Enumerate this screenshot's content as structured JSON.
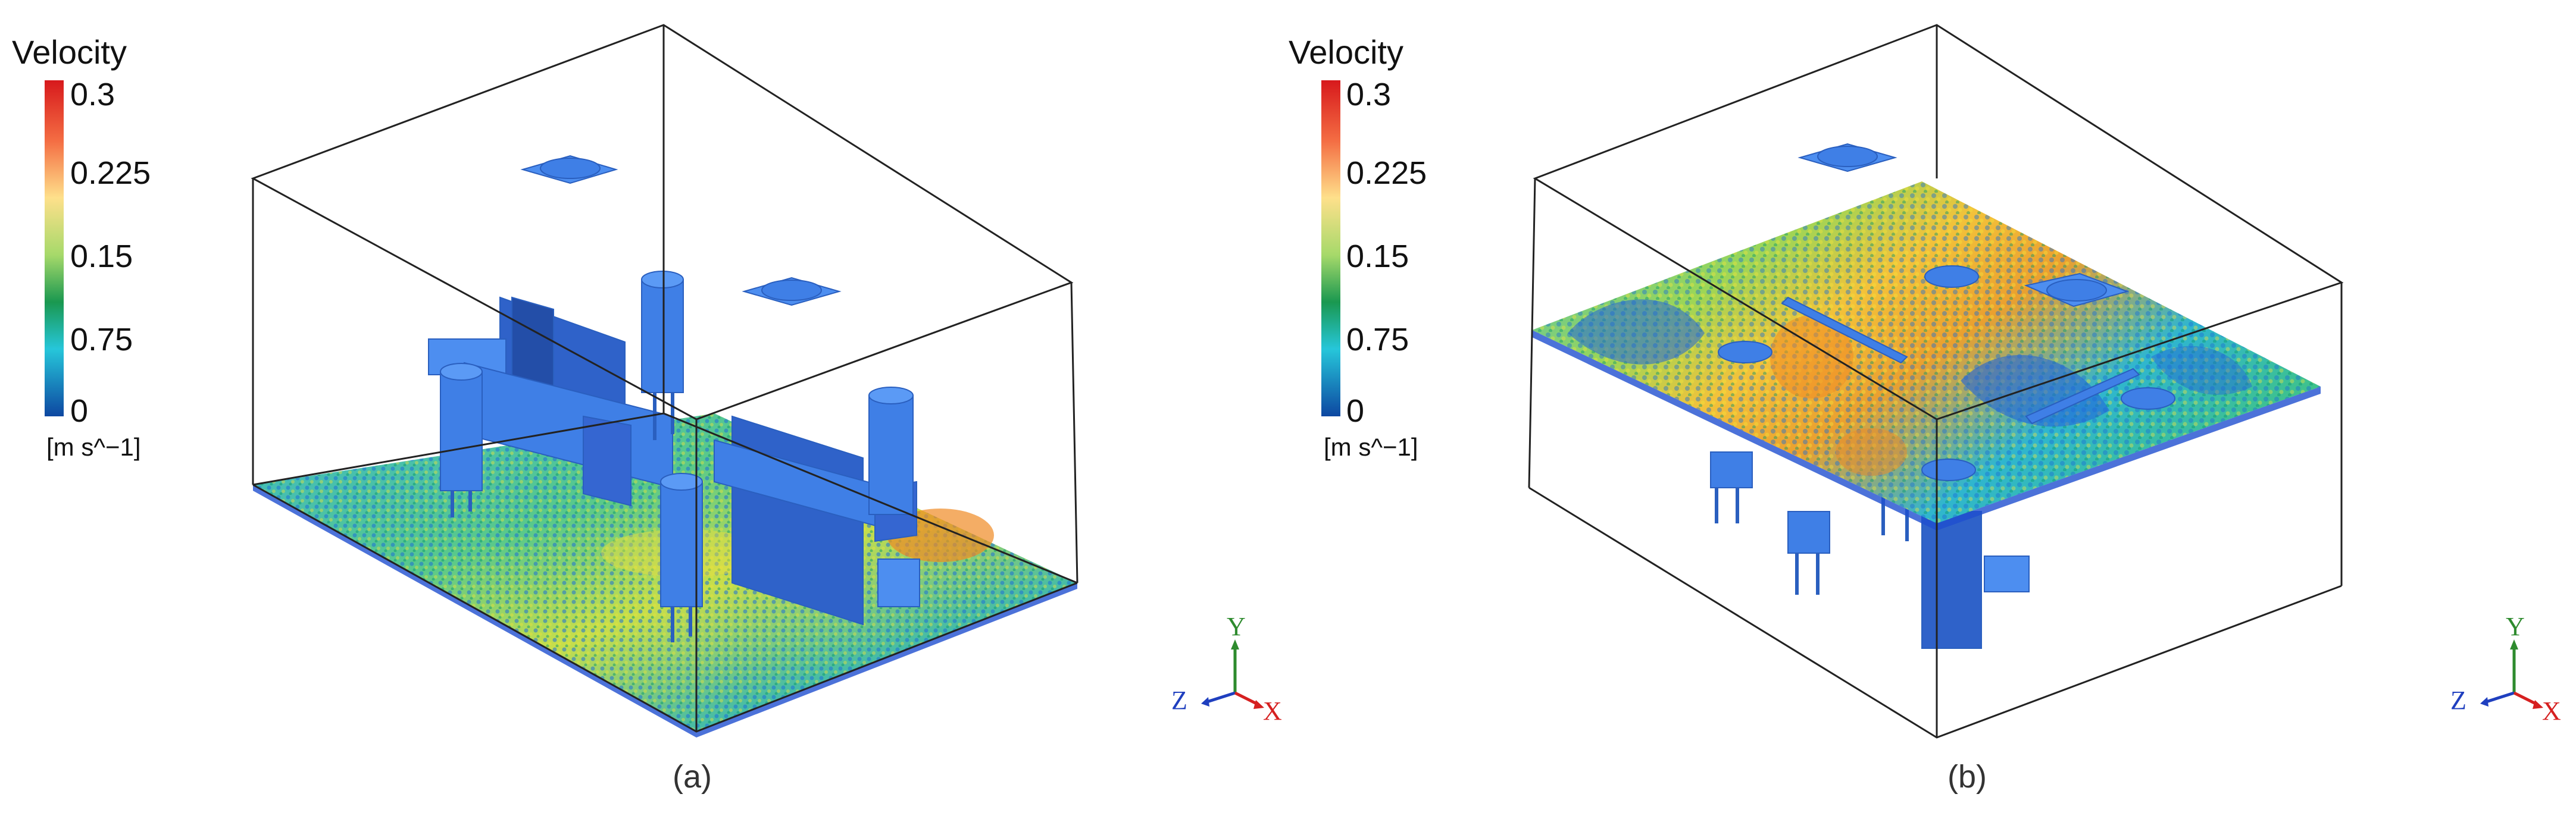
{
  "panels": [
    {
      "id": "a",
      "caption": "(a)",
      "legend": {
        "title": "Velocity",
        "ticks": [
          "0.3",
          "0.225",
          "0.15",
          "0.75",
          "0"
        ],
        "unit": "[m s^−1]",
        "colormap": [
          "#d7191c",
          "#f46d43",
          "#fee08b",
          "#a6d96a",
          "#1a9850",
          "#26c6da",
          "#0d47a1"
        ]
      },
      "axes": {
        "y": "Y",
        "z": "Z",
        "x": "X"
      },
      "view": "particle layer near floor with equipment and cylinders"
    },
    {
      "id": "b",
      "caption": "(b)",
      "legend": {
        "title": "Velocity",
        "ticks": [
          "0.3",
          "0.225",
          "0.15",
          "0.75",
          "0"
        ],
        "unit": "[m s^−1]",
        "colormap": [
          "#d7191c",
          "#f46d43",
          "#fee08b",
          "#a6d96a",
          "#1a9850",
          "#26c6da",
          "#0d47a1"
        ]
      },
      "axes": {
        "y": "Y",
        "z": "Z",
        "x": "X"
      },
      "view": "particle layer at mid-height above equipment"
    }
  ],
  "colors": {
    "axis_y": "#2e8b2e",
    "axis_z": "#1f3fbf",
    "axis_x": "#d62020",
    "object": "#3f7fe6",
    "box_edge": "#222222"
  }
}
